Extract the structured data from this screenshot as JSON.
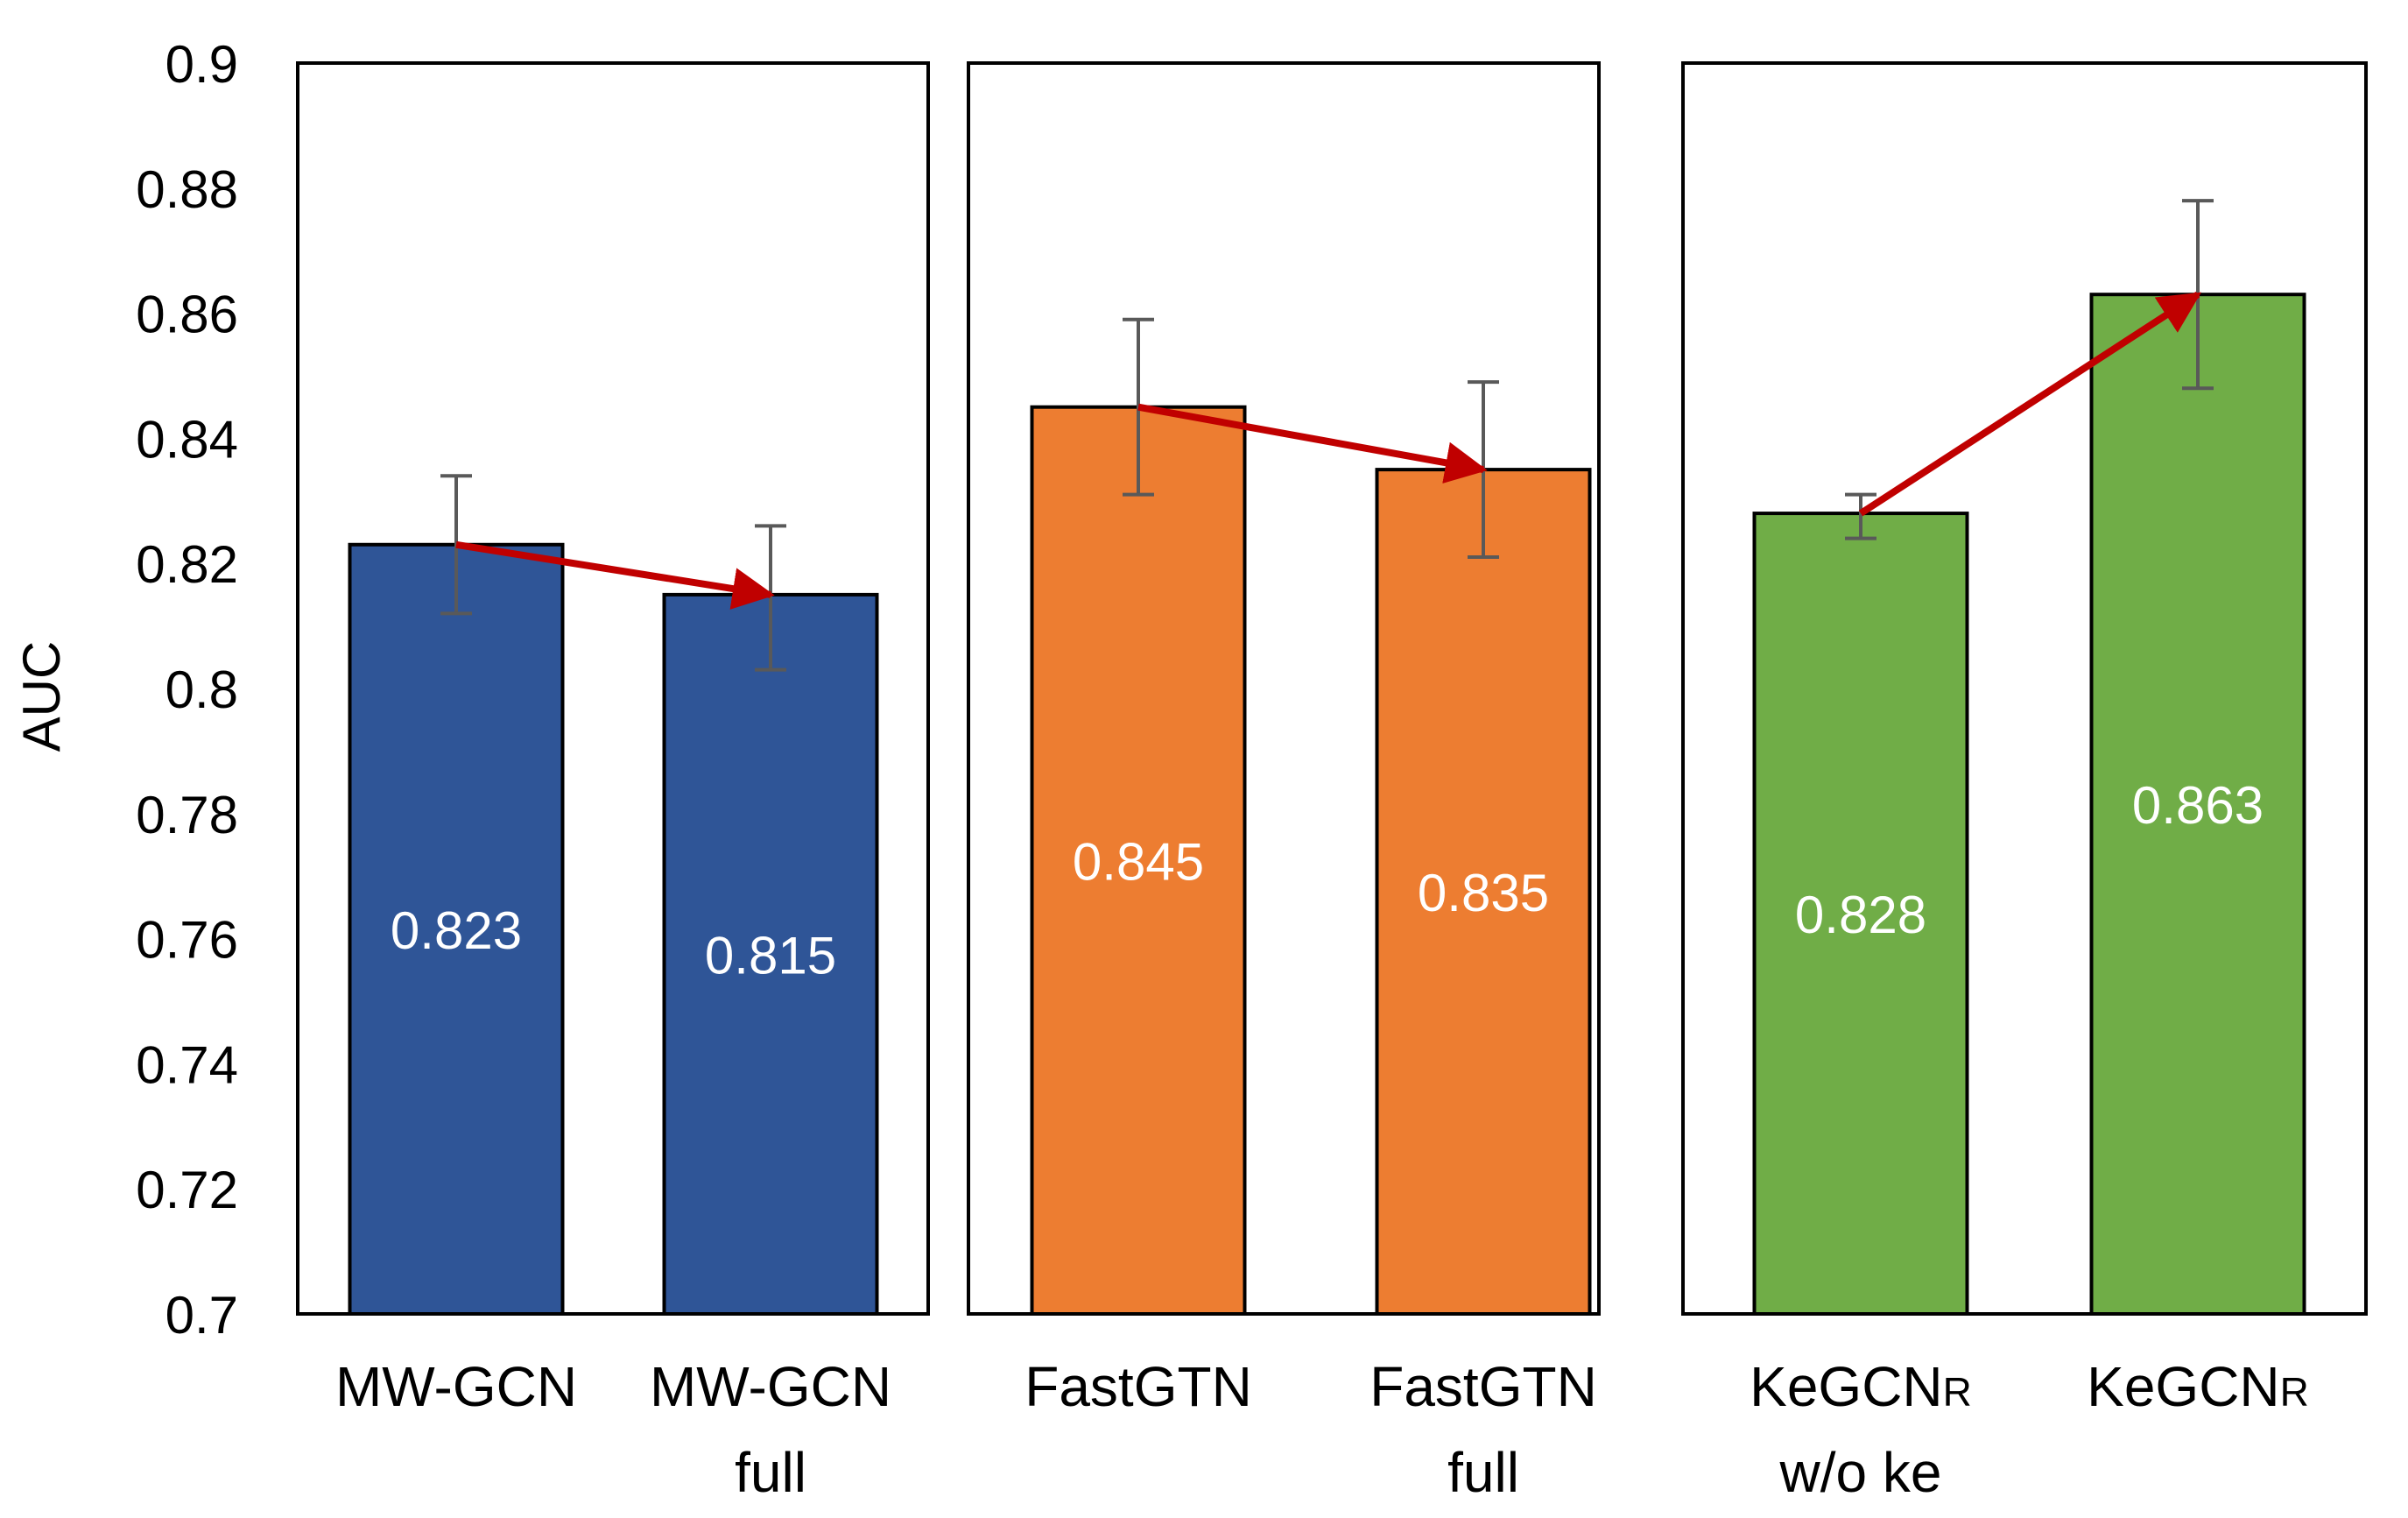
{
  "chart_data": {
    "type": "bar",
    "ylabel": "AUC",
    "ylim": [
      0.7,
      0.9
    ],
    "yticks": [
      "0.7",
      "0.72",
      "0.74",
      "0.76",
      "0.78",
      "0.8",
      "0.82",
      "0.84",
      "0.86",
      "0.88",
      "0.9"
    ],
    "grid": false,
    "legend": "none",
    "arrow_color": "#C00000",
    "errorbar_color": "#595959",
    "label_color": "#FFFFFF",
    "groups": [
      {
        "color": "#2F5597",
        "bars": [
          {
            "label_lines": [
              "MW-GCN"
            ],
            "value": 0.823,
            "value_label": "0.823",
            "err_low": 0.812,
            "err_high": 0.834
          },
          {
            "label_lines": [
              "MW-GCN",
              "full"
            ],
            "value": 0.815,
            "value_label": "0.815",
            "err_low": 0.803,
            "err_high": 0.826
          }
        ]
      },
      {
        "color": "#ED7D31",
        "bars": [
          {
            "label_lines": [
              "FastGTN"
            ],
            "value": 0.845,
            "value_label": "0.845",
            "err_low": 0.831,
            "err_high": 0.859
          },
          {
            "label_lines": [
              "FastGTN",
              "full"
            ],
            "value": 0.835,
            "value_label": "0.835",
            "err_low": 0.821,
            "err_high": 0.849
          }
        ]
      },
      {
        "color": "#70AD47",
        "bars": [
          {
            "label_lines": [
              "KeGCN",
              "w/o ke"
            ],
            "label_sub": "R",
            "value": 0.828,
            "value_label": "0.828",
            "err_low": 0.824,
            "err_high": 0.831
          },
          {
            "label_lines": [
              "KeGCN"
            ],
            "label_sub": "R",
            "value": 0.863,
            "value_label": "0.863",
            "err_low": 0.848,
            "err_high": 0.878
          }
        ]
      }
    ]
  }
}
